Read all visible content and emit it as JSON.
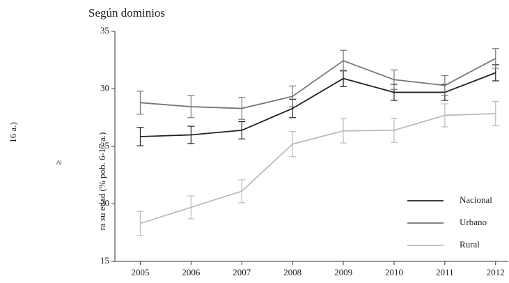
{
  "chart_data": {
    "type": "line",
    "title": "Según dominios",
    "y_label": "ra su edad (% pob. 6-17 a.)",
    "annotations": [
      "16 a.)",
      "≥"
    ],
    "x": [
      2005,
      2006,
      2007,
      2008,
      2009,
      2010,
      2011,
      2012
    ],
    "xlim": [
      2004.5,
      2012.25
    ],
    "xticks": [
      2005,
      2006,
      2007,
      2008,
      2009,
      2010,
      2011,
      2012
    ],
    "ylim": [
      15,
      35
    ],
    "yticks": [
      15,
      20,
      25,
      30,
      35
    ],
    "legend": "lower right",
    "series": [
      {
        "name": "Nacional",
        "color": "#222222",
        "values": [
          25.85,
          26.0,
          26.4,
          28.3,
          30.9,
          29.7,
          29.7,
          31.4
        ],
        "errors": [
          0.8,
          0.75,
          0.75,
          0.8,
          0.7,
          0.7,
          0.7,
          0.7
        ]
      },
      {
        "name": "Urbano",
        "color": "#777777",
        "values": [
          28.8,
          28.45,
          28.3,
          29.35,
          32.45,
          30.8,
          30.3,
          32.65
        ],
        "errors": [
          1.0,
          0.95,
          0.95,
          0.9,
          0.9,
          0.85,
          0.85,
          0.85
        ]
      },
      {
        "name": "Rural",
        "color": "#bbbbbb",
        "values": [
          18.3,
          19.7,
          21.1,
          25.2,
          26.35,
          26.4,
          27.7,
          27.85
        ],
        "errors": [
          1.05,
          1.0,
          1.0,
          1.1,
          1.05,
          1.05,
          1.0,
          1.05
        ]
      }
    ]
  }
}
